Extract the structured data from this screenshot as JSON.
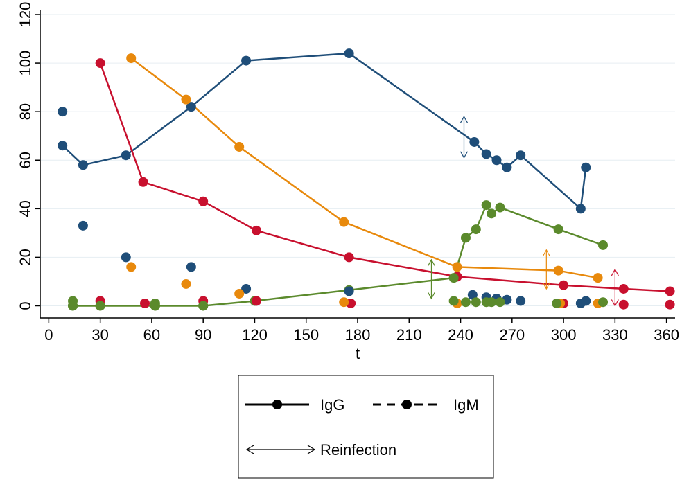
{
  "chart_data": {
    "type": "line",
    "xlabel": "t",
    "ylabel": "",
    "xlim": [
      -5,
      365
    ],
    "ylim": [
      -5,
      122
    ],
    "xticks": [
      0,
      30,
      60,
      90,
      120,
      150,
      180,
      210,
      240,
      270,
      300,
      330,
      360
    ],
    "yticks": [
      0,
      20,
      40,
      60,
      80,
      100,
      120
    ],
    "grid": "horizontal",
    "legend_position": "bottom",
    "colors": {
      "navy": "#1f4e79",
      "crimson": "#c8102e",
      "orange": "#e8890c",
      "olive": "#5b8a2c"
    },
    "series": [
      {
        "color": "navy",
        "marker_kind": "line",
        "x": [
          8,
          20,
          45,
          83,
          115,
          175,
          248,
          255,
          261,
          267,
          275,
          310,
          313
        ],
        "y": [
          66,
          58,
          62,
          82,
          101,
          104,
          67.5,
          62.5,
          60,
          57,
          62,
          40,
          57
        ]
      },
      {
        "color": "crimson",
        "marker_kind": "line",
        "x": [
          30,
          55,
          90,
          121,
          175,
          238,
          300,
          335,
          362
        ],
        "y": [
          100,
          51,
          43,
          31,
          20,
          12,
          8.5,
          7,
          6
        ]
      },
      {
        "color": "orange",
        "marker_kind": "line",
        "x": [
          48,
          80,
          111,
          172,
          238,
          297,
          320
        ],
        "y": [
          102,
          85,
          65.5,
          34.5,
          16,
          14.5,
          11.5
        ]
      },
      {
        "color": "olive",
        "marker_kind": "line",
        "x": [
          14,
          30,
          62,
          90,
          120,
          175,
          236,
          243,
          249,
          255,
          258,
          263,
          297,
          323
        ],
        "y": [
          0,
          0,
          0,
          0,
          2,
          6.5,
          11.5,
          28,
          31.5,
          41.5,
          38,
          40.5,
          31.5,
          25
        ]
      },
      {
        "color": "navy",
        "marker_kind": "points",
        "x": [
          8,
          20,
          45,
          83,
          115,
          175,
          247,
          255,
          261,
          267,
          275,
          310,
          313
        ],
        "y": [
          80,
          33,
          20,
          16,
          7,
          6,
          4.5,
          3.5,
          3,
          2.5,
          2,
          1,
          2
        ]
      },
      {
        "color": "crimson",
        "marker_kind": "points",
        "x": [
          30,
          56,
          90,
          121,
          176,
          300,
          335,
          362
        ],
        "y": [
          2,
          1,
          2,
          2,
          1,
          1,
          0.5,
          0.5
        ]
      },
      {
        "color": "orange",
        "marker_kind": "points",
        "x": [
          48,
          80,
          111,
          172,
          238,
          298,
          320
        ],
        "y": [
          16,
          9,
          5,
          1.5,
          1,
          1,
          1
        ]
      },
      {
        "color": "olive",
        "marker_kind": "points",
        "x": [
          14,
          14,
          30,
          62,
          62,
          90,
          236,
          243,
          249,
          255,
          258,
          263,
          296,
          323
        ],
        "y": [
          2,
          0,
          0,
          1,
          0,
          0,
          2,
          1.5,
          1.5,
          1.5,
          1.5,
          1.5,
          1,
          1.5
        ]
      }
    ],
    "reinfection_arrows": [
      {
        "color": "navy",
        "x": 242,
        "y1": 61,
        "y2": 78
      },
      {
        "color": "olive",
        "x": 223,
        "y1": 3,
        "y2": 19
      },
      {
        "color": "orange",
        "x": 290,
        "y1": 7,
        "y2": 23
      },
      {
        "color": "crimson",
        "x": 330,
        "y1": 0,
        "y2": 15
      }
    ]
  },
  "legend": {
    "igg_label": "IgG",
    "igm_label": "IgM",
    "reinfection_label": "Reinfection"
  }
}
